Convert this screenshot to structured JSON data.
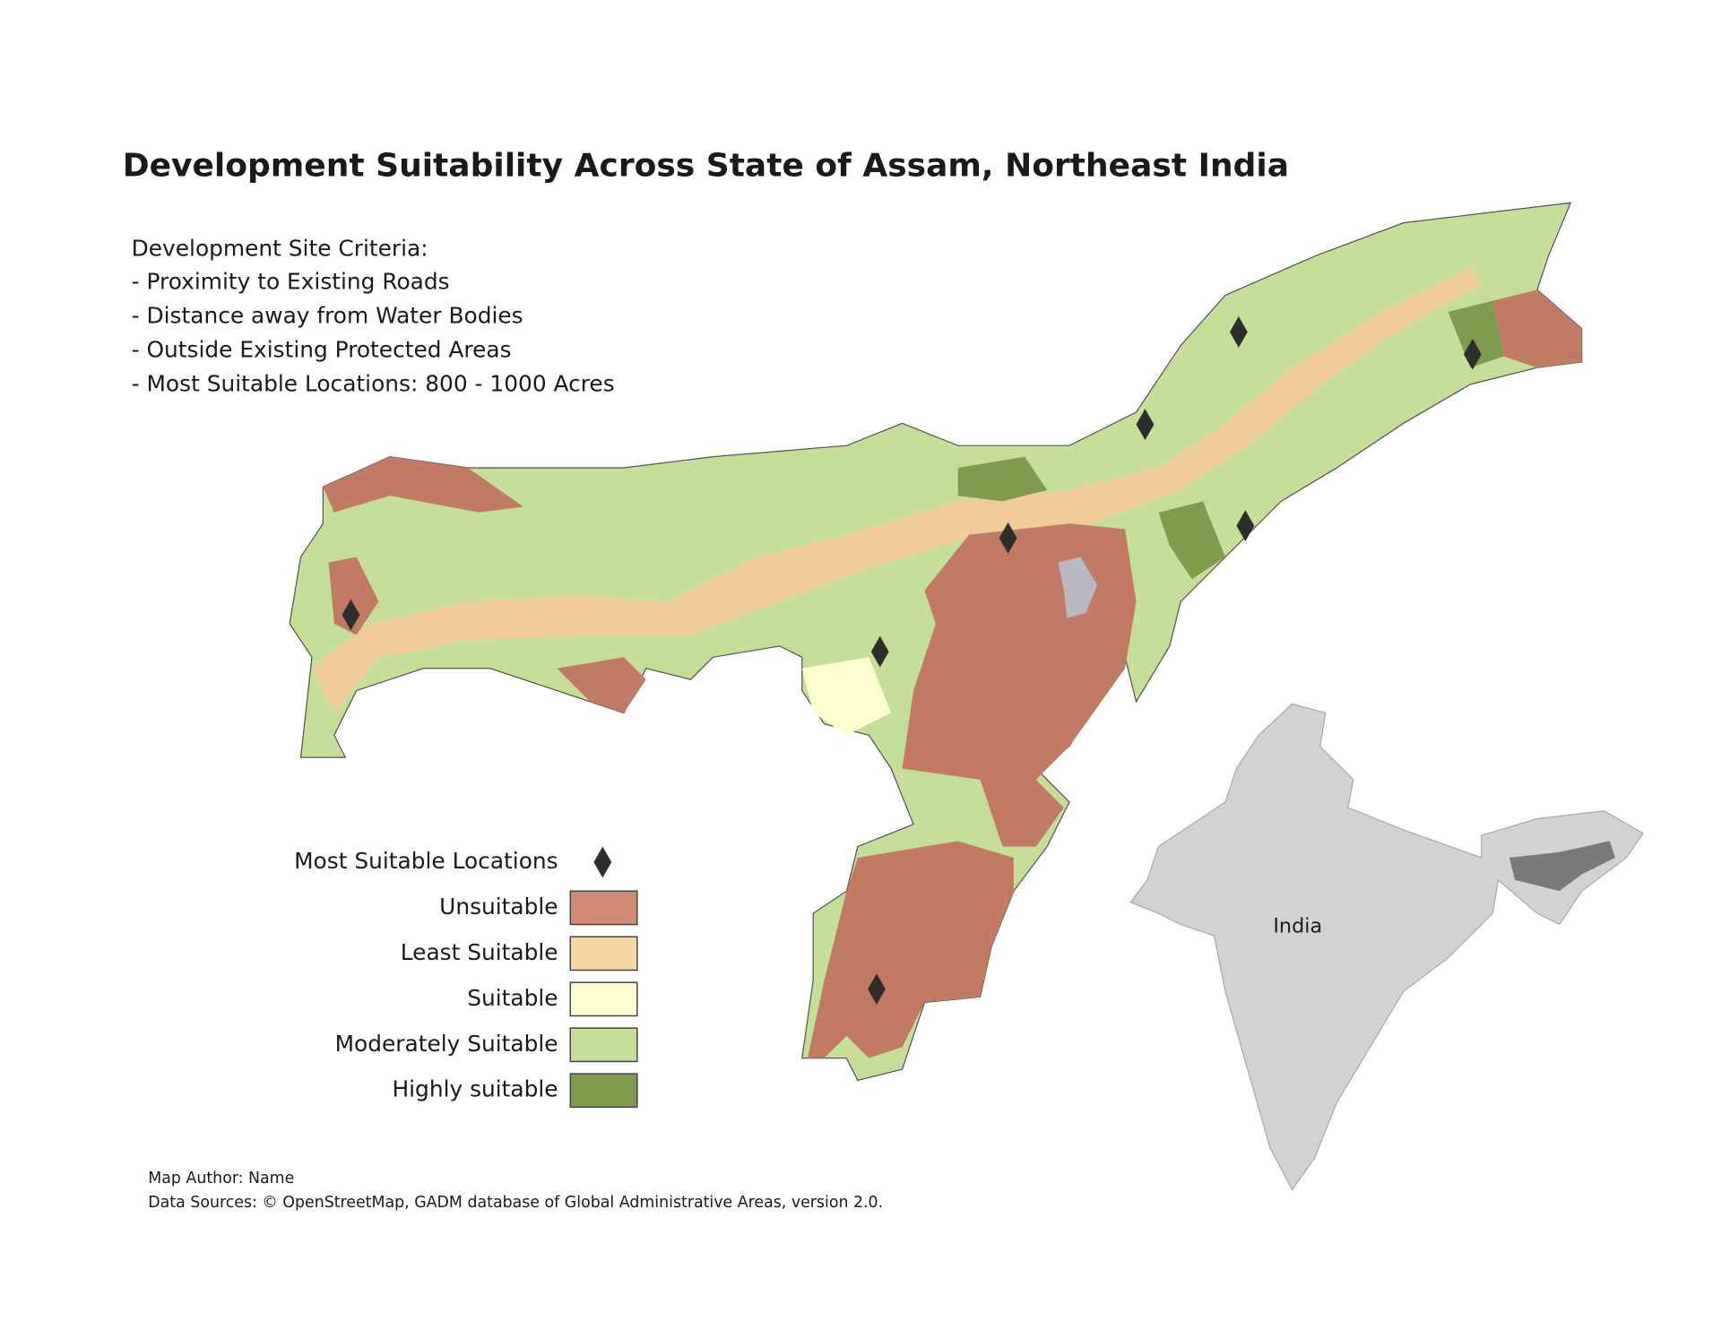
{
  "title": "Development Suitability Across State of Assam, Northeast India",
  "criteria": {
    "heading": "Development Site Criteria:",
    "items": [
      "- Proximity to Existing Roads",
      "- Distance away from Water Bodies",
      "- Outside Existing Protected Areas",
      "- Most Suitable Locations: 800 - 1000 Acres"
    ]
  },
  "legend": {
    "locations_label": "Most Suitable Locations",
    "classes": [
      {
        "label": "Unsuitable",
        "color": "#d08a74"
      },
      {
        "label": "Least Suitable",
        "color": "#f7d6a2"
      },
      {
        "label": "Suitable",
        "color": "#fefdd0"
      },
      {
        "label": "Moderately Suitable",
        "color": "#c6df98"
      },
      {
        "label": "Highly suitable",
        "color": "#7f9b4e"
      }
    ]
  },
  "inset": {
    "label": "India"
  },
  "footer": {
    "author": "Map Author: Name",
    "sources": "Data Sources: © OpenStreetMap, GADM database of Global Administrative Areas, version 2.0."
  }
}
